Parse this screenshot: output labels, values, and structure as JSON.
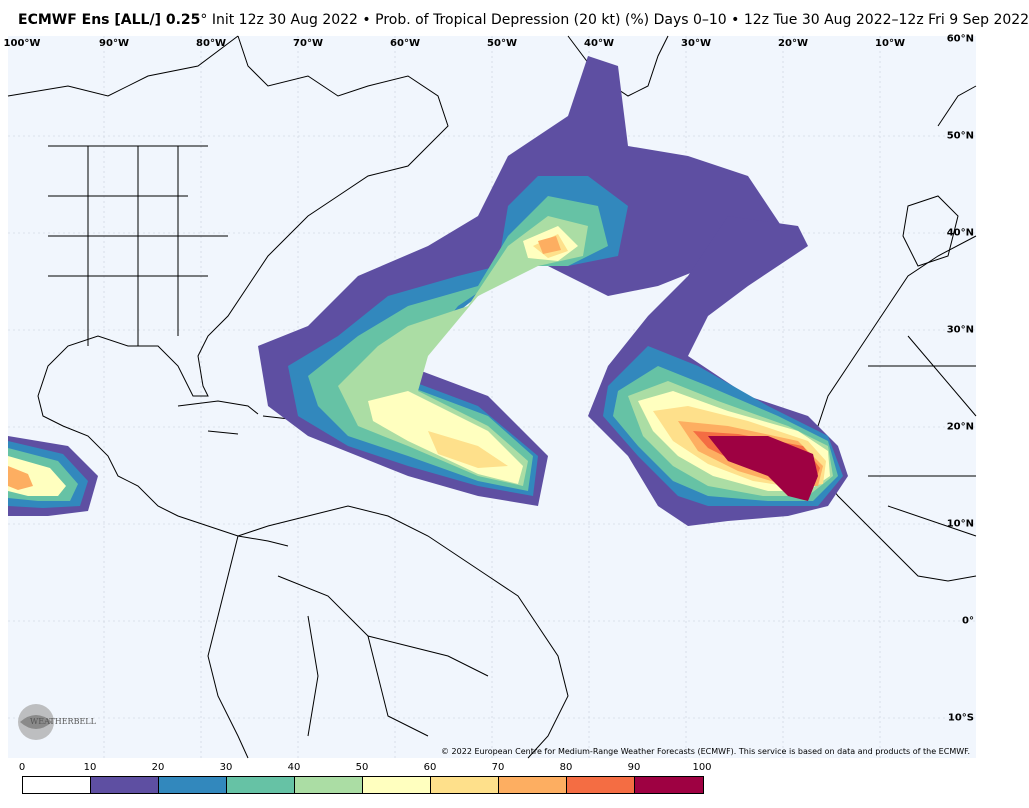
{
  "header": {
    "title_bold": "ECMWF Ens [ALL/] 0.25",
    "degree": "°",
    "title_rest": " Init 12z 30 Aug 2022 • Prob. of Tropical Depression (20 kt) (%)   Days 0–10 • 12z Tue 30 Aug 2022–12z Fri 9 Sep 2022"
  },
  "map": {
    "longitude_labels": [
      "100°W",
      "90°W",
      "80°W",
      "70°W",
      "60°W",
      "50°W",
      "40°W",
      "30°W",
      "20°W",
      "10°W"
    ],
    "latitude_labels": [
      "60°N",
      "50°N",
      "40°N",
      "30°N",
      "20°N",
      "10°N",
      "0°",
      "10°S"
    ],
    "copyright": "© 2022 European Centre for Medium-Range Weather Forecasts (ECMWF). This service is based on data and products of the ECMWF.",
    "logo_text": "WEATHERBELL",
    "ocean_color": "#f1f6fd"
  },
  "colorbar": {
    "ticks": [
      "0",
      "10",
      "20",
      "30",
      "40",
      "50",
      "60",
      "70",
      "80",
      "90",
      "100"
    ],
    "colors": [
      "#ffffff",
      "#5e4fa2",
      "#3288bd",
      "#66c2a5",
      "#abdda4",
      "#ffffbf",
      "#fee08b",
      "#fdae61",
      "#f46d43",
      "#9e0142"
    ]
  }
}
